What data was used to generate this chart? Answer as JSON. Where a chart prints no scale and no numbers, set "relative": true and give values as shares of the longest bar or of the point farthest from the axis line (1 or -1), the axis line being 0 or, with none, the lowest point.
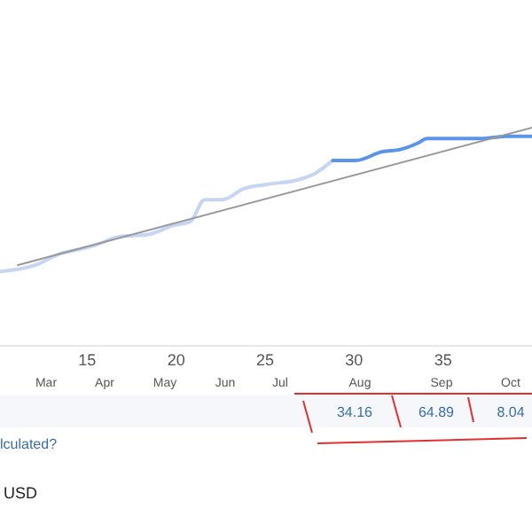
{
  "chart_data": {
    "type": "line",
    "relative": true,
    "xlim": [
      10.1,
      40
    ],
    "xticks": [
      15,
      20,
      25,
      30,
      35
    ],
    "series": [
      {
        "color": "#c6d5f3",
        "x": [
          10.1,
          12.1,
          13.4,
          14.4,
          15.4,
          16.8,
          18.4,
          19.8,
          20.8,
          21.6,
          22.6,
          23.8,
          25.1,
          26.8,
          27.8,
          28.8
        ],
        "values": [
          0.34,
          0.37,
          0.42,
          0.44,
          0.46,
          0.5,
          0.51,
          0.55,
          0.57,
          0.67,
          0.67,
          0.72,
          0.74,
          0.76,
          0.79,
          0.85
        ]
      },
      {
        "color": "#5b95e8",
        "x": [
          28.8,
          30.1,
          31.6,
          32.6,
          33.6,
          34.1,
          37.1,
          38.6,
          40
        ],
        "values": [
          0.85,
          0.85,
          0.89,
          0.9,
          0.93,
          0.95,
          0.95,
          0.96,
          0.96
        ]
      },
      {
        "color": "#999999",
        "x": [
          11.1,
          40
        ],
        "values": [
          0.37,
          1.0
        ]
      }
    ],
    "annotations": [
      "34.16",
      "64.89",
      "8.04",
      "lculated?",
      "USD",
      "Mar",
      "Apr",
      "May",
      "Jun",
      "Jul",
      "Aug",
      "Sep",
      "Oct"
    ]
  }
}
